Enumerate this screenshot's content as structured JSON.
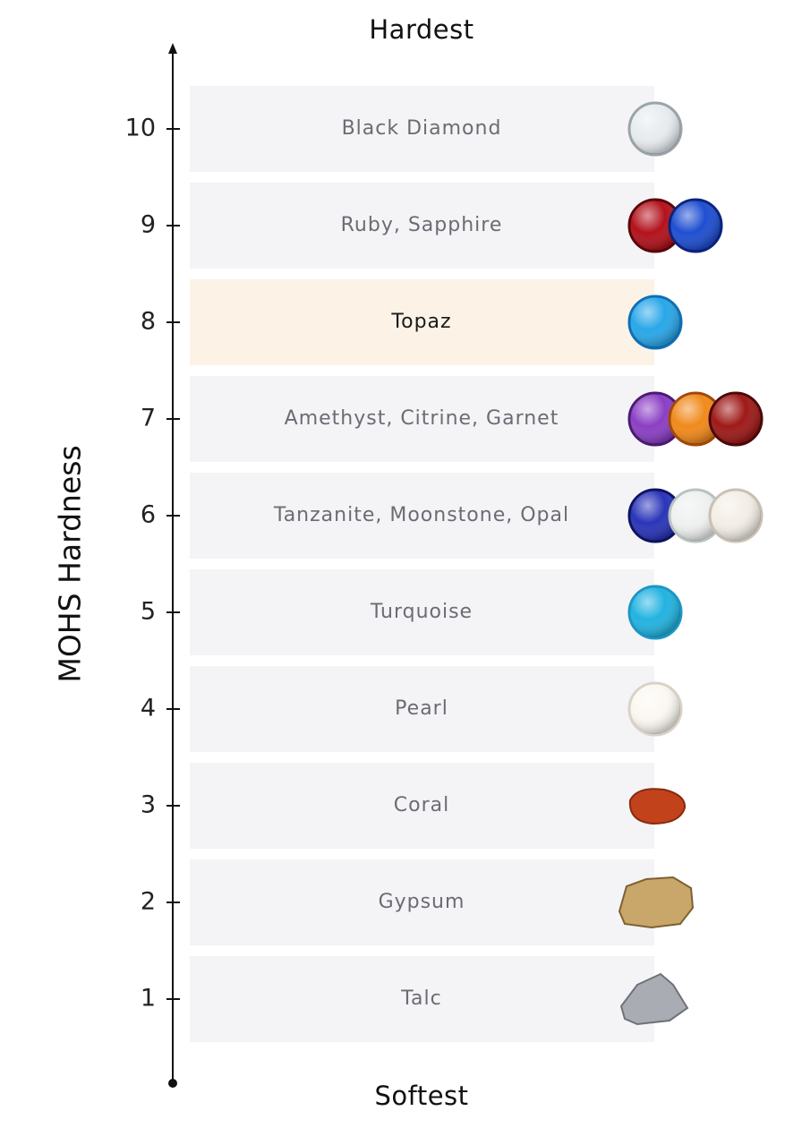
{
  "axis_label": "MOHS Hardness",
  "top_label": "Hardest",
  "bottom_label": "Softest",
  "rows": [
    {
      "level": 10,
      "label": "Black Diamond"
    },
    {
      "level": 9,
      "label": "Ruby, Sapphire"
    },
    {
      "level": 8,
      "label": "Topaz",
      "highlighted": true
    },
    {
      "level": 7,
      "label": "Amethyst, Citrine, Garnet"
    },
    {
      "level": 6,
      "label": "Tanzanite, Moonstone, Opal"
    },
    {
      "level": 5,
      "label": "Turquoise"
    },
    {
      "level": 4,
      "label": "Pearl"
    },
    {
      "level": 3,
      "label": "Coral"
    },
    {
      "level": 2,
      "label": "Gypsum"
    },
    {
      "level": 1,
      "label": "Talc"
    }
  ]
}
